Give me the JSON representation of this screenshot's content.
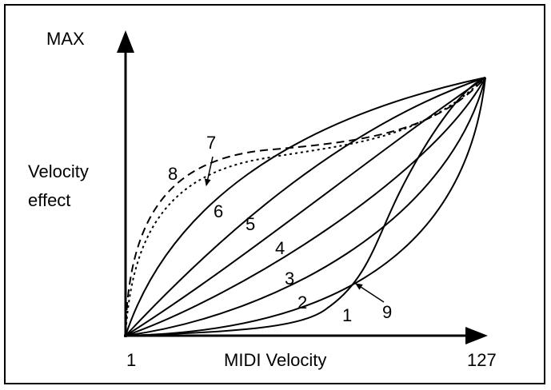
{
  "diagram": {
    "y_max_label": "MAX",
    "y_axis_label_line1": "Velocity",
    "y_axis_label_line2": "effect",
    "x_min_label": "1",
    "x_axis_label": "MIDI Velocity",
    "x_max_label": "127",
    "curve_labels": {
      "c1": "1",
      "c2": "2",
      "c3": "3",
      "c4": "4",
      "c5": "5",
      "c6": "6",
      "c7": "7",
      "c8": "8",
      "c9": "9"
    }
  }
}
